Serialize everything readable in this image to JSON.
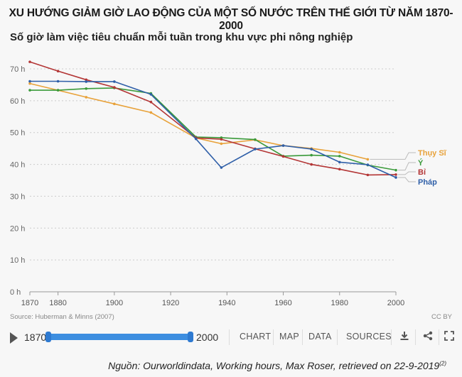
{
  "header": {
    "title": "XU HƯỚNG GIẢM GIỜ LAO ĐỘNG CỦA MỘT SỐ NƯỚC TRÊN THẾ GIỚI TỪ NĂM 1870-2000",
    "subtitle": "Số giờ làm việc tiêu chuẩn mỗi tuần trong khu vực phi nông nghiệp"
  },
  "chart_data": {
    "type": "line",
    "title": "XU HƯỚNG GIẢM GIỜ LAO ĐỘNG CỦA MỘT SỐ NƯỚC TRÊN THẾ GIỚI TỪ NĂM 1870-2000",
    "subtitle": "Số giờ làm việc tiêu chuẩn mỗi tuần trong khu vực phi nông nghiệp",
    "xlim": [
      1870,
      2000
    ],
    "ylim": [
      0,
      70
    ],
    "x_ticks": [
      "1870",
      "1880",
      "1900",
      "1920",
      "1940",
      "1960",
      "1980",
      "2000"
    ],
    "x_tick_values": [
      1870,
      1880,
      1900,
      1920,
      1940,
      1960,
      1980,
      2000
    ],
    "y_ticks": [
      "0 h",
      "10 h",
      "20 h",
      "30 h",
      "40 h",
      "50 h",
      "60 h",
      "70 h"
    ],
    "y_tick_values": [
      0,
      10,
      20,
      30,
      40,
      50,
      60,
      70
    ],
    "grid": "horizontal dotted",
    "legend": "right end labels",
    "series": [
      {
        "name": "Thụy Sĩ",
        "color": "#e8a23a",
        "x": [
          1870,
          1880,
          1890,
          1900,
          1913,
          1929,
          1938,
          1950,
          1960,
          1970,
          1980,
          1990
        ],
        "y": [
          65.4,
          63.3,
          61.1,
          59.0,
          56.3,
          48.3,
          46.5,
          47.7,
          45.9,
          45.0,
          43.8,
          41.6
        ]
      },
      {
        "name": "Ý",
        "color": "#3a9a3a",
        "x": [
          1870,
          1880,
          1890,
          1900,
          1913,
          1929,
          1938,
          1950,
          1960,
          1970,
          1980,
          1990,
          2000
        ],
        "y": [
          63.3,
          63.3,
          63.8,
          64.0,
          62.3,
          48.6,
          48.4,
          47.8,
          42.6,
          42.9,
          42.6,
          39.8,
          38.2
        ]
      },
      {
        "name": "Bỉ",
        "color": "#b33535",
        "x": [
          1870,
          1880,
          1890,
          1900,
          1913,
          1929,
          1938,
          1950,
          1960,
          1970,
          1980,
          1990,
          2000
        ],
        "y": [
          72.2,
          69.3,
          66.6,
          64.2,
          59.6,
          48.3,
          47.9,
          44.9,
          42.5,
          40.0,
          38.5,
          36.7,
          36.8
        ]
      },
      {
        "name": "Pháp",
        "color": "#2f5fa8",
        "x": [
          1870,
          1880,
          1890,
          1900,
          1913,
          1929,
          1938,
          1950,
          1960,
          1970,
          1980,
          1990,
          2000
        ],
        "y": [
          66.1,
          66.1,
          66.0,
          66.0,
          62.0,
          48.0,
          39.0,
          44.8,
          45.9,
          44.8,
          40.7,
          39.9,
          35.9
        ]
      }
    ]
  },
  "footer": {
    "source": "Source: Huberman & Minns (2007)",
    "license": "CC BY"
  },
  "controls": {
    "start_year": "1870",
    "end_year": "2000",
    "tabs": [
      "CHART",
      "MAP",
      "DATA",
      "SOURCES"
    ],
    "icons": [
      "download-icon",
      "share-icon",
      "expand-icon"
    ]
  },
  "attribution": {
    "text": "Nguồn: Ourworldindata, Working hours, Max Roser, retrieved on 22-9-2019",
    "note": "(2)"
  }
}
